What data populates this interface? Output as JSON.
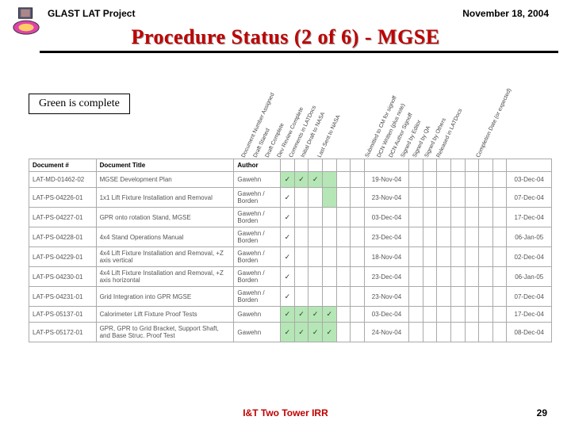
{
  "header": {
    "project": "GLAST LAT Project",
    "date": "November 18, 2004"
  },
  "title": "Procedure Status (2 of 6) - MGSE",
  "legend": "Green is complete",
  "columns": {
    "doc": "Document #",
    "title": "Document Title",
    "author": "Author"
  },
  "rot_headers": [
    "Document Number Assigned",
    "Draft Started",
    "Draft Complete",
    "Dev Review Complete",
    "Comments in LATDocs",
    "Initial Draft to NASA",
    "Last Sent to NASA",
    "Submitted to CM for signoff",
    "DCN Written (plus note)",
    "DCN Author Signoff",
    "Signed by Editor",
    "Signed by QA",
    "Signed by Others",
    "Released in LATDocs",
    "Completion Date (or expected)"
  ],
  "rows": [
    {
      "doc": "LAT-MD-01462-02",
      "title": "MGSE Development Plan",
      "author": "Gawehn",
      "g": [
        0,
        1,
        2,
        3
      ],
      "chk": [
        0,
        1,
        2
      ],
      "d1": "19-Nov-04",
      "d2": "03-Dec-04"
    },
    {
      "doc": "LAT-PS-04226-01",
      "title": "1x1 Lift Fixture Installation and Removal",
      "author": "Gawehn / Borden",
      "g": [
        3
      ],
      "chk": [
        0
      ],
      "d1": "23-Nov-04",
      "d2": "07-Dec-04"
    },
    {
      "doc": "LAT-PS-04227-01",
      "title": "GPR onto rotation Stand, MGSE",
      "author": "Gawehn / Borden",
      "g": [],
      "chk": [
        0
      ],
      "d1": "03-Dec-04",
      "d2": "17-Dec-04"
    },
    {
      "doc": "LAT-PS-04228-01",
      "title": "4x4 Stand Operations Manual",
      "author": "Gawehn / Borden",
      "g": [],
      "chk": [
        0
      ],
      "d1": "23-Dec-04",
      "d2": "06-Jan-05"
    },
    {
      "doc": "LAT-PS-04229-01",
      "title": "4x4 Lift Fixture Installation and Removal, +Z axis vertical",
      "author": "Gawehn / Borden",
      "g": [],
      "chk": [
        0
      ],
      "d1": "18-Nov-04",
      "d2": "02-Dec-04"
    },
    {
      "doc": "LAT-PS-04230-01",
      "title": "4x4 Lift Fixture Installation and Removal, +Z axis horizontal",
      "author": "Gawehn / Borden",
      "g": [],
      "chk": [
        0
      ],
      "d1": "23-Dec-04",
      "d2": "06-Jan-05"
    },
    {
      "doc": "LAT-PS-04231-01",
      "title": "Grid Integration into GPR MGSE",
      "author": "Gawehn / Borden",
      "g": [],
      "chk": [
        0
      ],
      "d1": "23-Nov-04",
      "d2": "07-Dec-04"
    },
    {
      "doc": "LAT-PS-05137-01",
      "title": "Calorimeter Lift Fixture Proof Tests",
      "author": "Gawehn",
      "g": [
        0,
        1,
        2,
        3
      ],
      "chk": [
        0,
        1,
        2,
        3
      ],
      "d1": "03-Dec-04",
      "d2": "17-Dec-04"
    },
    {
      "doc": "LAT-PS-05172-01",
      "title": "GPR, GPR to Grid Bracket, Support Shaft, and Base Struc. Proof Test",
      "author": "Gawehn",
      "g": [
        0,
        1,
        2,
        3
      ],
      "chk": [
        0,
        1,
        2,
        3
      ],
      "d1": "24-Nov-04",
      "d2": "08-Dec-04"
    }
  ],
  "footer": {
    "center": "I&T Two Tower IRR",
    "page": "29"
  },
  "colors": {
    "accent": "#c00000",
    "green": "#b5e6b5"
  }
}
